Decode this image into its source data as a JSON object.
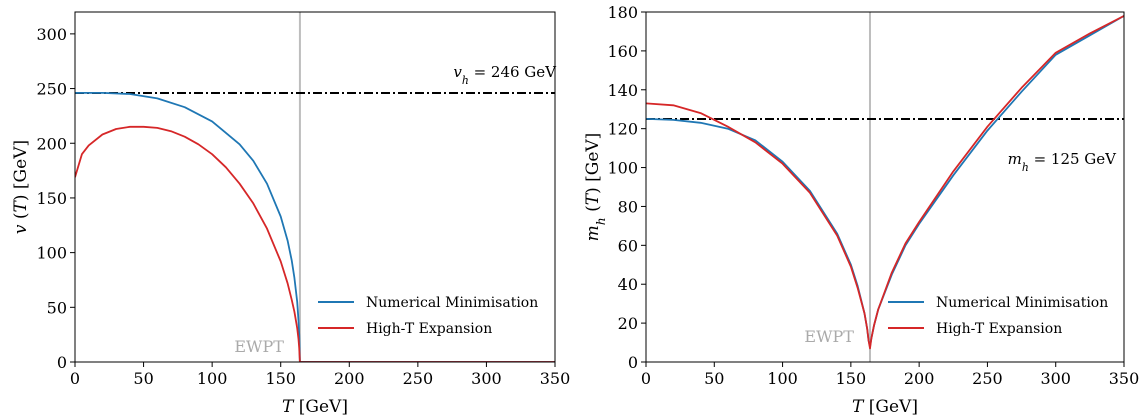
{
  "colors": {
    "numerical": "#1f77b4",
    "high_t": "#d62728",
    "reference_line": "#000000",
    "ewpt_line": "#bdbdbd",
    "ewpt_text": "#aaaaaa"
  },
  "chart_data": [
    {
      "type": "line",
      "xlabel": "T [GeV]",
      "ylabel": "v (T) [GeV]",
      "xlim": [
        0,
        350
      ],
      "ylim": [
        0,
        320
      ],
      "xticks": [
        0,
        50,
        100,
        150,
        200,
        250,
        300,
        350
      ],
      "yticks": [
        0,
        50,
        100,
        150,
        200,
        250,
        300
      ],
      "grid": false,
      "legend_position": "bottom-right",
      "hline": {
        "y": 246,
        "style": "dash-dot",
        "label": "v_h = 246 GeV"
      },
      "vline": {
        "x": 164,
        "label": "EWPT"
      },
      "series": [
        {
          "name": "Numerical Minimisation",
          "color_key": "numerical",
          "x": [
            0,
            20,
            40,
            60,
            80,
            100,
            120,
            130,
            140,
            150,
            155,
            158,
            160,
            162,
            163,
            163.5,
            164,
            200,
            250,
            300,
            350
          ],
          "y": [
            246,
            246,
            245,
            241,
            233,
            220,
            199,
            184,
            163,
            133,
            111,
            93,
            77,
            55,
            38,
            25,
            0,
            0,
            0,
            0,
            0
          ]
        },
        {
          "name": "High-T Expansion",
          "color_key": "high_t",
          "x": [
            0,
            5,
            10,
            20,
            30,
            40,
            50,
            60,
            70,
            80,
            90,
            100,
            110,
            120,
            130,
            140,
            150,
            155,
            158,
            160,
            162,
            163,
            163.5,
            164,
            200,
            250,
            300,
            350
          ],
          "y": [
            169,
            190,
            198,
            208,
            213,
            215,
            215,
            214,
            211,
            206,
            199,
            190,
            178,
            163,
            145,
            122,
            92,
            72,
            57,
            46,
            31,
            21,
            13,
            0,
            0,
            0,
            0,
            0
          ]
        }
      ]
    },
    {
      "type": "line",
      "xlabel": "T [GeV]",
      "ylabel": "m_h (T) [GeV]",
      "xlim": [
        0,
        350
      ],
      "ylim": [
        0,
        180
      ],
      "xticks": [
        0,
        50,
        100,
        150,
        200,
        250,
        300,
        350
      ],
      "yticks": [
        0,
        20,
        40,
        60,
        80,
        100,
        120,
        140,
        160,
        180
      ],
      "grid": false,
      "legend_position": "bottom-center",
      "hline": {
        "y": 125,
        "style": "dash-dot",
        "label": "m_h = 125 GeV"
      },
      "vline": {
        "x": 164,
        "label": "EWPT"
      },
      "series": [
        {
          "name": "Numerical Minimisation",
          "color_key": "numerical",
          "x": [
            0,
            20,
            40,
            60,
            80,
            100,
            120,
            140,
            150,
            155,
            160,
            162,
            163,
            164,
            165,
            167,
            170,
            180,
            190,
            200,
            225,
            250,
            275,
            300,
            325,
            350
          ],
          "y": [
            125,
            124.5,
            123,
            120,
            114,
            103,
            88,
            66,
            50,
            39,
            25,
            17,
            11,
            8,
            12,
            19,
            27,
            45,
            60,
            71,
            96,
            119,
            139,
            158,
            168,
            178
          ]
        },
        {
          "name": "High-T Expansion",
          "color_key": "high_t",
          "x": [
            0,
            20,
            40,
            60,
            80,
            100,
            120,
            140,
            150,
            155,
            160,
            162,
            163,
            164,
            165,
            167,
            170,
            180,
            190,
            200,
            225,
            250,
            275,
            300,
            325,
            350
          ],
          "y": [
            133,
            132,
            128,
            121,
            113,
            102,
            87,
            65,
            49,
            38,
            25,
            17,
            11,
            7,
            12,
            19,
            27,
            46,
            61,
            72,
            98,
            121,
            141,
            159,
            169,
            178
          ]
        }
      ]
    }
  ]
}
